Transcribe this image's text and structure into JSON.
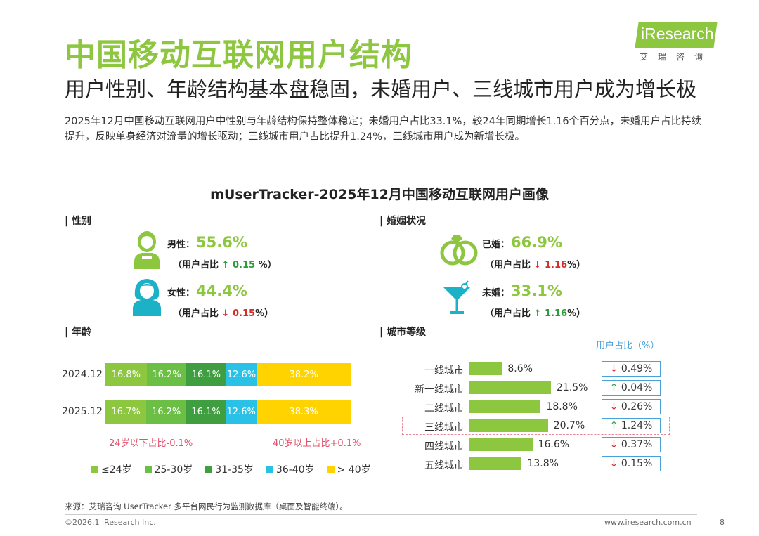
{
  "header": {
    "title": "中国移动互联网用户结构",
    "subtitle": "用户性别、年龄结构基本盘稳固，未婚用户、三线城市用户成为增长极",
    "description": "2025年12月中国移动互联网用户中性别与年龄结构保持整体稳定；未婚用户占比33.1%，较24年同期增长1.16个百分点，未婚用户占比持续提升，反映单身经济对流量的增长驱动；三线城市用户占比提升1.24%，三线城市用户成为新增长极。"
  },
  "logo": {
    "text": "iResearch",
    "cn": "艾瑞咨询"
  },
  "chart_title": "mUserTracker-2025年12月中国移动互联网用户画像",
  "colors": {
    "brand_green": "#8dc63f",
    "teal_icon": "#1bb1c7",
    "age_colors": [
      "#8dc63f",
      "#6bbf45",
      "#3f9e3f",
      "#29c1e6",
      "#ffd300"
    ],
    "up": "#2a9d3a",
    "down": "#d62c2c",
    "city_box": "#4aa0d8",
    "highlight": "#e88a95"
  },
  "gender": {
    "section_label": "| 性别",
    "male": {
      "label": "男性：",
      "value": "55.6%",
      "share_prefix": "（用户占比",
      "arrow": "↑",
      "change": "0.15",
      "share_suffix": " %）",
      "icon": "male-user-icon"
    },
    "female": {
      "label": "女性：",
      "value": "44.4%",
      "share_prefix": "（用户占比",
      "arrow": "↓",
      "change": "0.15",
      "share_suffix": "%）",
      "icon": "female-user-icon"
    }
  },
  "marital": {
    "section_label": "| 婚姻状况",
    "married": {
      "label": "已婚：",
      "value": "66.9%",
      "share_prefix": "（用户占比",
      "arrow": "↓",
      "change": "1.16",
      "share_suffix": "%）",
      "icon": "wedding-rings-icon"
    },
    "single": {
      "label": "未婚：",
      "value": "33.1%",
      "share_prefix": "（用户占比",
      "arrow": "↑",
      "change": "1.16",
      "share_suffix": "%）",
      "icon": "cocktail-glass-icon"
    }
  },
  "age": {
    "section_label": "| 年龄",
    "note_left": "24岁以下占比-0.1%",
    "note_right": "40岁以上占比+0.1%"
  },
  "city": {
    "section_label": "| 城市等级",
    "change_header": "用户占比（%）"
  },
  "chart_data": [
    {
      "type": "bar",
      "orientation": "horizontal-stacked-100",
      "categories": [
        "2024.12",
        "2025.12"
      ],
      "series": [
        {
          "name": "≤24岁",
          "values": [
            16.8,
            16.7
          ]
        },
        {
          "name": "25-30岁",
          "values": [
            16.2,
            16.2
          ]
        },
        {
          "name": "31-35岁",
          "values": [
            16.1,
            16.1
          ]
        },
        {
          "name": "36-40岁",
          "values": [
            12.6,
            12.6
          ]
        },
        {
          "name": "> 40岁",
          "values": [
            38.2,
            38.3
          ]
        }
      ],
      "legend_position": "bottom"
    },
    {
      "type": "bar",
      "orientation": "horizontal",
      "categories": [
        "一线城市",
        "新一线城市",
        "二线城市",
        "三线城市",
        "四线城市",
        "五线城市"
      ],
      "values": [
        8.6,
        21.5,
        18.8,
        20.7,
        16.6,
        13.8
      ],
      "changes": [
        {
          "arrow": "↓",
          "text": "0.49%"
        },
        {
          "arrow": "↑",
          "text": "0.04%"
        },
        {
          "arrow": "↓",
          "text": "0.26%"
        },
        {
          "arrow": "↑",
          "text": "1.24%"
        },
        {
          "arrow": "↓",
          "text": "0.37%"
        },
        {
          "arrow": "↓",
          "text": "0.15%"
        }
      ],
      "highlighted_category": "三线城市",
      "xlim": [
        0,
        25
      ]
    }
  ],
  "footer": {
    "source": "来源：艾瑞咨询 UserTracker 多平台网民行为监测数据库（桌面及智能终端）。",
    "copyright": "©2026.1 iResearch Inc.",
    "url": "www.iresearch.com.cn",
    "page": "8"
  }
}
